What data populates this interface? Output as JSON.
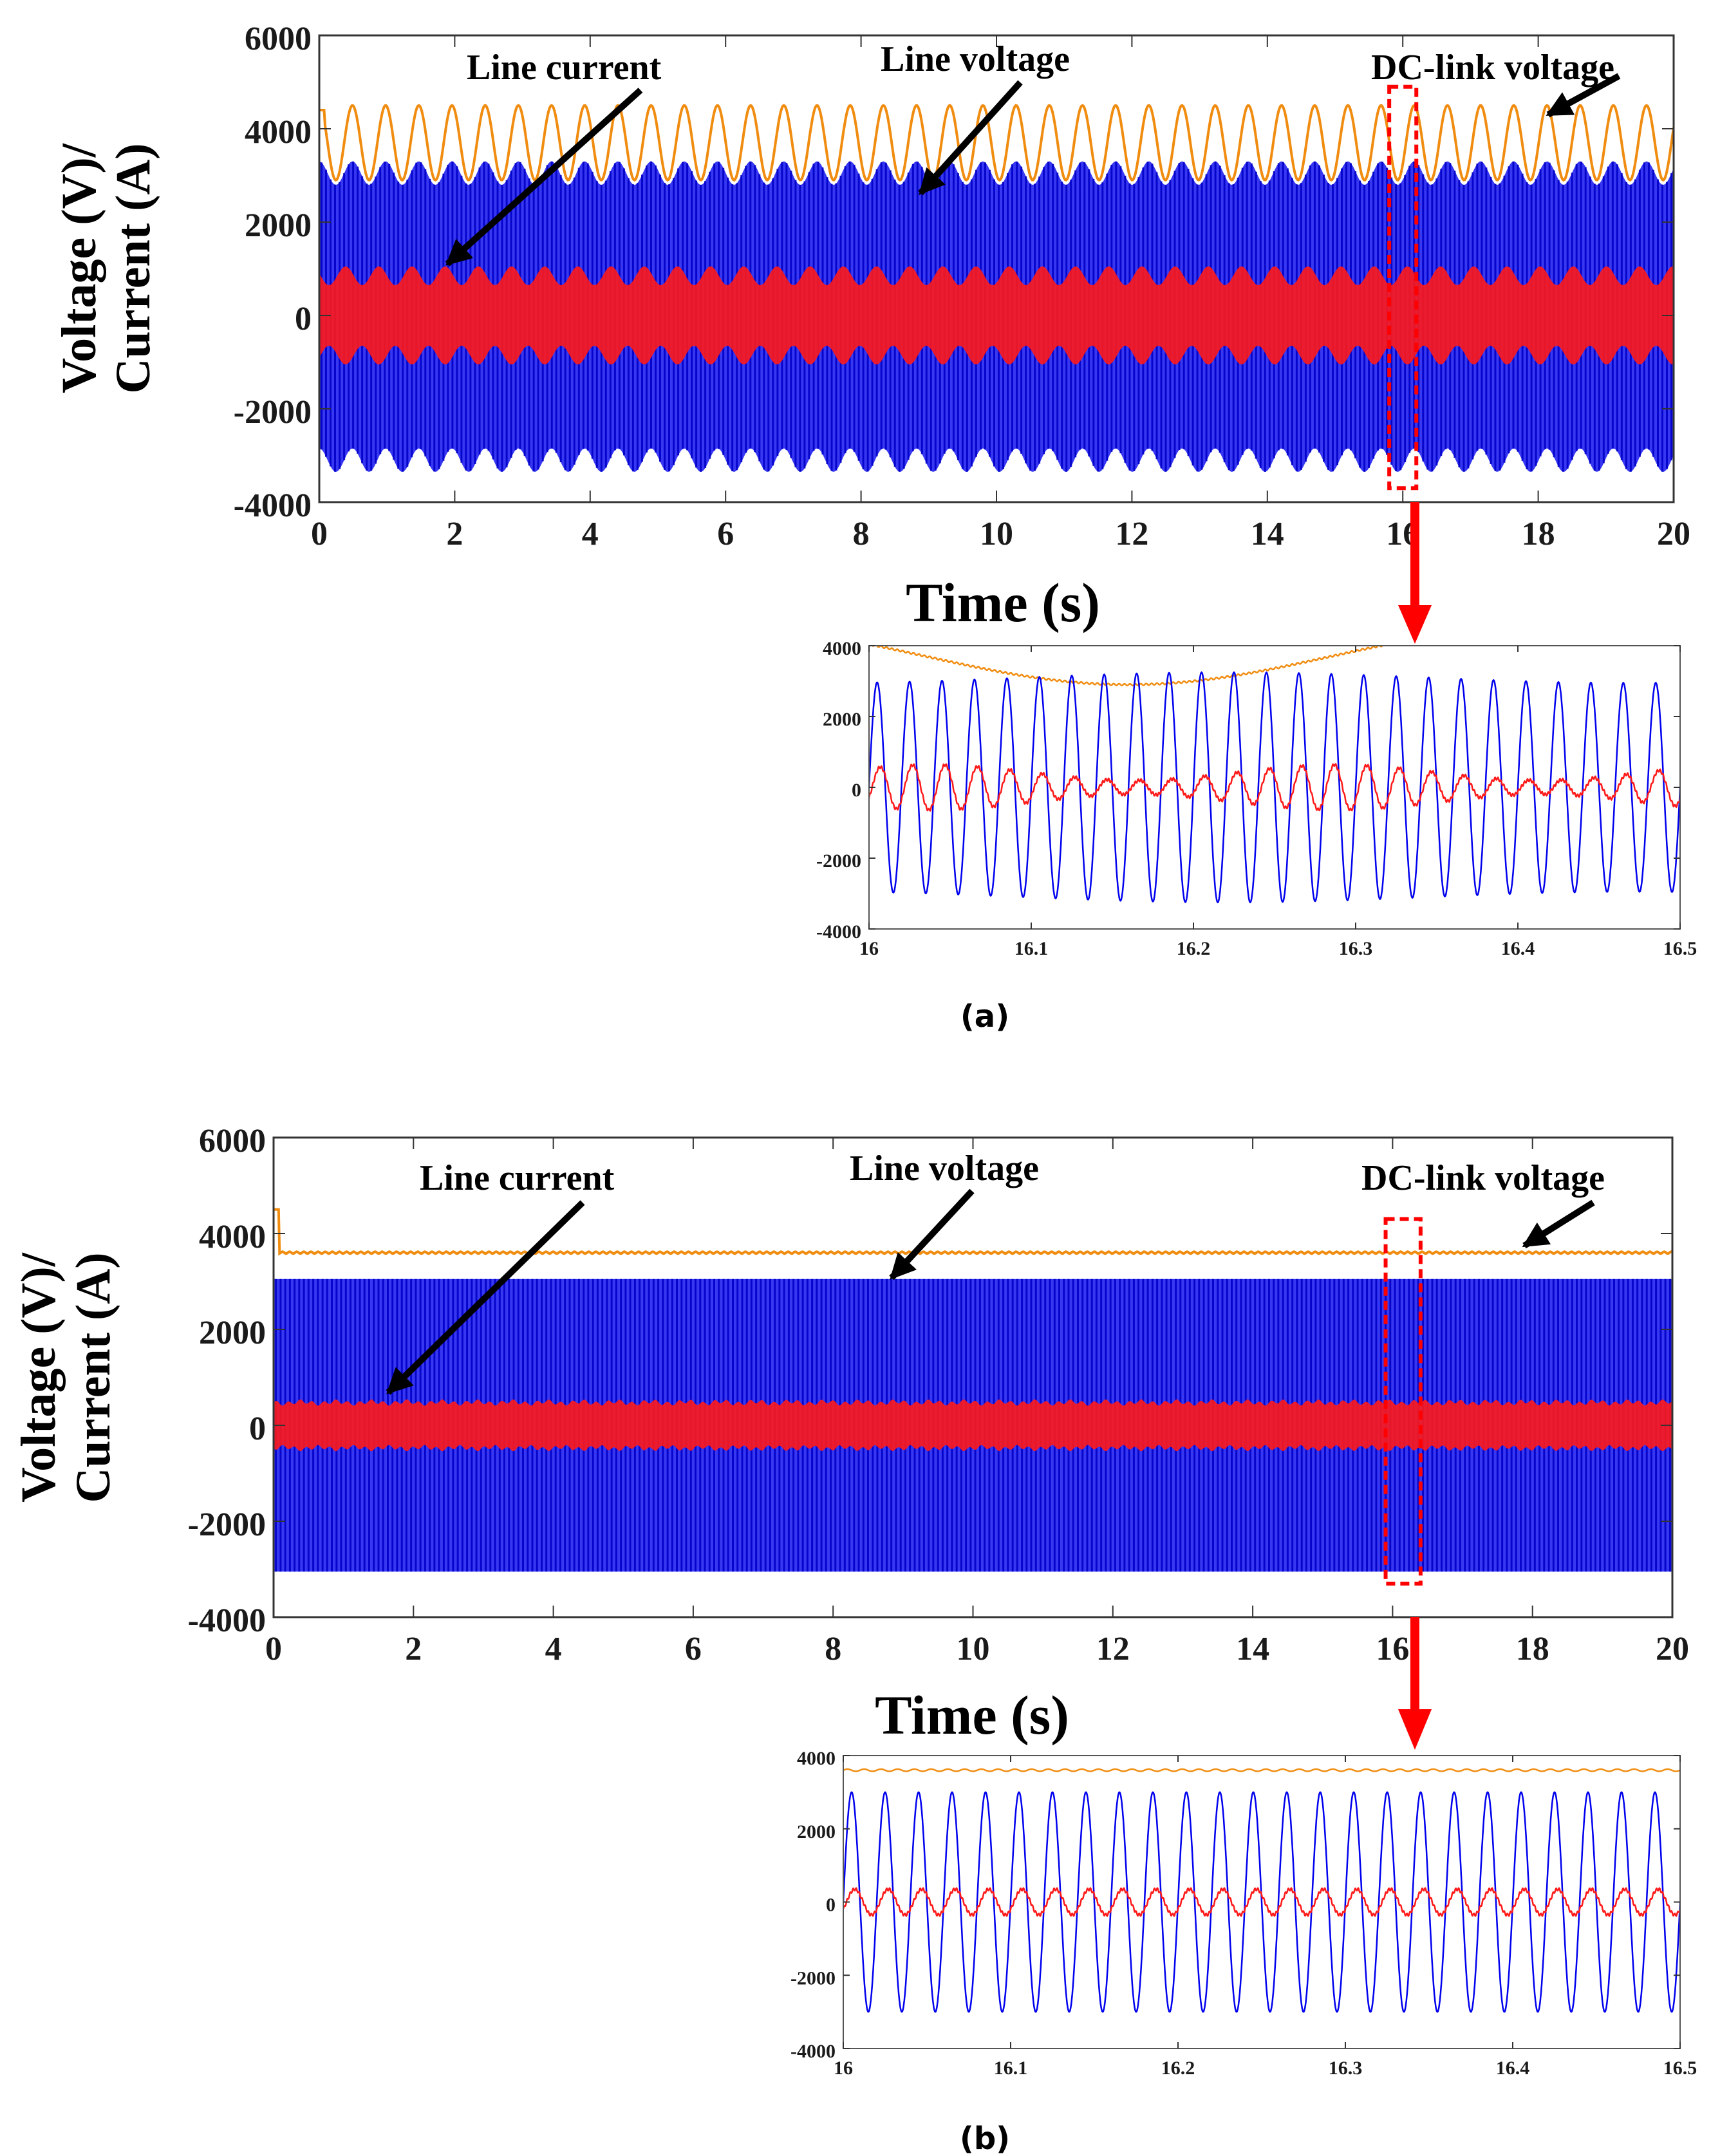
{
  "colors": {
    "line_current": "#ff1a1a",
    "line_voltage": "#0000ee",
    "dc_link": "#f08c10",
    "highlight_box": "#ff0000",
    "arrow": "#000000",
    "down_arrow": "#ff0000"
  },
  "chart_data": [
    {
      "id": "a_main",
      "type": "line",
      "panel": "(a)",
      "xlabel": "Time (s)",
      "ylabel": "Voltage (V)/ Current (A)",
      "ylabel_lines": [
        "Voltage (V)/",
        "Current (A)"
      ],
      "xlim": [
        0,
        20
      ],
      "ylim": [
        -4000,
        6000
      ],
      "xticks": [
        0,
        2,
        4,
        6,
        8,
        10,
        12,
        14,
        16,
        18,
        20
      ],
      "yticks": [
        -4000,
        -2000,
        0,
        2000,
        4000,
        6000
      ],
      "grid": false,
      "highlight_x": [
        15.8,
        16.2
      ],
      "highlight_y": [
        -3700,
        4900
      ],
      "series": [
        {
          "name": "Line voltage",
          "kind": "band",
          "upper_mean": 3050,
          "upper_ripple": 250,
          "lower_mean": -3100,
          "lower_ripple": 250,
          "envelope_period": 0.49
        },
        {
          "name": "Line current",
          "kind": "band",
          "amplitude_max": 1050,
          "amplitude_min": 650,
          "envelope_period": 0.49
        },
        {
          "name": "DC-link voltage",
          "kind": "line",
          "mean": 3700,
          "ripple": 800,
          "period": 0.49,
          "start": 4400
        }
      ],
      "annotations": [
        {
          "text": "Line current",
          "target_x": 1.8,
          "target_y": 1000
        },
        {
          "text": "Line voltage",
          "target_x": 8.8,
          "target_y": 2500
        },
        {
          "text": "DC-link voltage",
          "target_x": 18.1,
          "target_y": 4300
        }
      ]
    },
    {
      "id": "a_zoom",
      "type": "line",
      "panel": "(a) zoom",
      "xlim": [
        16,
        16.5
      ],
      "ylim": [
        -4000,
        4000
      ],
      "xticks": [
        16,
        16.1,
        16.2,
        16.3,
        16.4,
        16.5
      ],
      "yticks": [
        -4000,
        -2000,
        0,
        2000,
        4000
      ],
      "xtick_labels": [
        "16",
        "16.1",
        "16.2",
        "16.3",
        "16.4",
        "16.5"
      ],
      "grid": false,
      "series": [
        {
          "name": "Line voltage",
          "kind": "sine",
          "frequency_hz": 50,
          "amplitude": 3100,
          "amplitude_mod": 150
        },
        {
          "name": "Line current",
          "kind": "sine",
          "frequency_hz": 50,
          "amplitude": 420,
          "amplitude_mod": 220
        },
        {
          "name": "DC-link voltage",
          "kind": "line",
          "mean": 3700,
          "ripple": 800,
          "trough_x": 16.16
        }
      ]
    },
    {
      "id": "b_main",
      "type": "line",
      "panel": "(b)",
      "xlabel": "Time (s)",
      "ylabel": "Voltage (V)/ Current (A)",
      "ylabel_lines": [
        "Voltage (V)/",
        "Current (A)"
      ],
      "xlim": [
        0,
        20
      ],
      "ylim": [
        -4000,
        6000
      ],
      "xticks": [
        0,
        2,
        4,
        6,
        8,
        10,
        12,
        14,
        16,
        18,
        20
      ],
      "yticks": [
        -4000,
        -2000,
        0,
        2000,
        4000,
        6000
      ],
      "grid": false,
      "highlight_x": [
        15.9,
        16.4
      ],
      "highlight_y": [
        -3300,
        4300
      ],
      "series": [
        {
          "name": "Line voltage",
          "kind": "band",
          "upper_mean": 3050,
          "upper_ripple": 0,
          "lower_mean": -3050,
          "lower_ripple": 0
        },
        {
          "name": "Line current",
          "kind": "band",
          "amplitude_max": 500,
          "amplitude_min": 450
        },
        {
          "name": "DC-link voltage",
          "kind": "line",
          "mean": 3600,
          "ripple": 20,
          "start": 4500
        }
      ],
      "annotations": [
        {
          "text": "Line current",
          "target_x": 1.5,
          "target_y": 600
        },
        {
          "text": "Line voltage",
          "target_x": 8.8,
          "target_y": 3100
        },
        {
          "text": "DC-link voltage",
          "target_x": 17.8,
          "target_y": 3800
        }
      ]
    },
    {
      "id": "b_zoom",
      "type": "line",
      "panel": "(b) zoom",
      "xlim": [
        16,
        16.5
      ],
      "ylim": [
        -4000,
        4000
      ],
      "xticks": [
        16,
        16.1,
        16.2,
        16.3,
        16.4,
        16.5
      ],
      "yticks": [
        -4000,
        -2000,
        0,
        2000,
        4000
      ],
      "xtick_labels": [
        "16",
        "16.1",
        "16.2",
        "16.3",
        "16.4",
        "16.5"
      ],
      "grid": false,
      "series": [
        {
          "name": "Line voltage",
          "kind": "sine",
          "frequency_hz": 50,
          "amplitude": 3000,
          "amplitude_mod": 0
        },
        {
          "name": "Line current",
          "kind": "sine",
          "frequency_hz": 50,
          "amplitude": 350,
          "amplitude_mod": 0
        },
        {
          "name": "DC-link voltage",
          "kind": "line",
          "mean": 3600,
          "ripple": 30
        }
      ]
    }
  ],
  "captions": {
    "a": "(a)",
    "b": "(b)"
  }
}
